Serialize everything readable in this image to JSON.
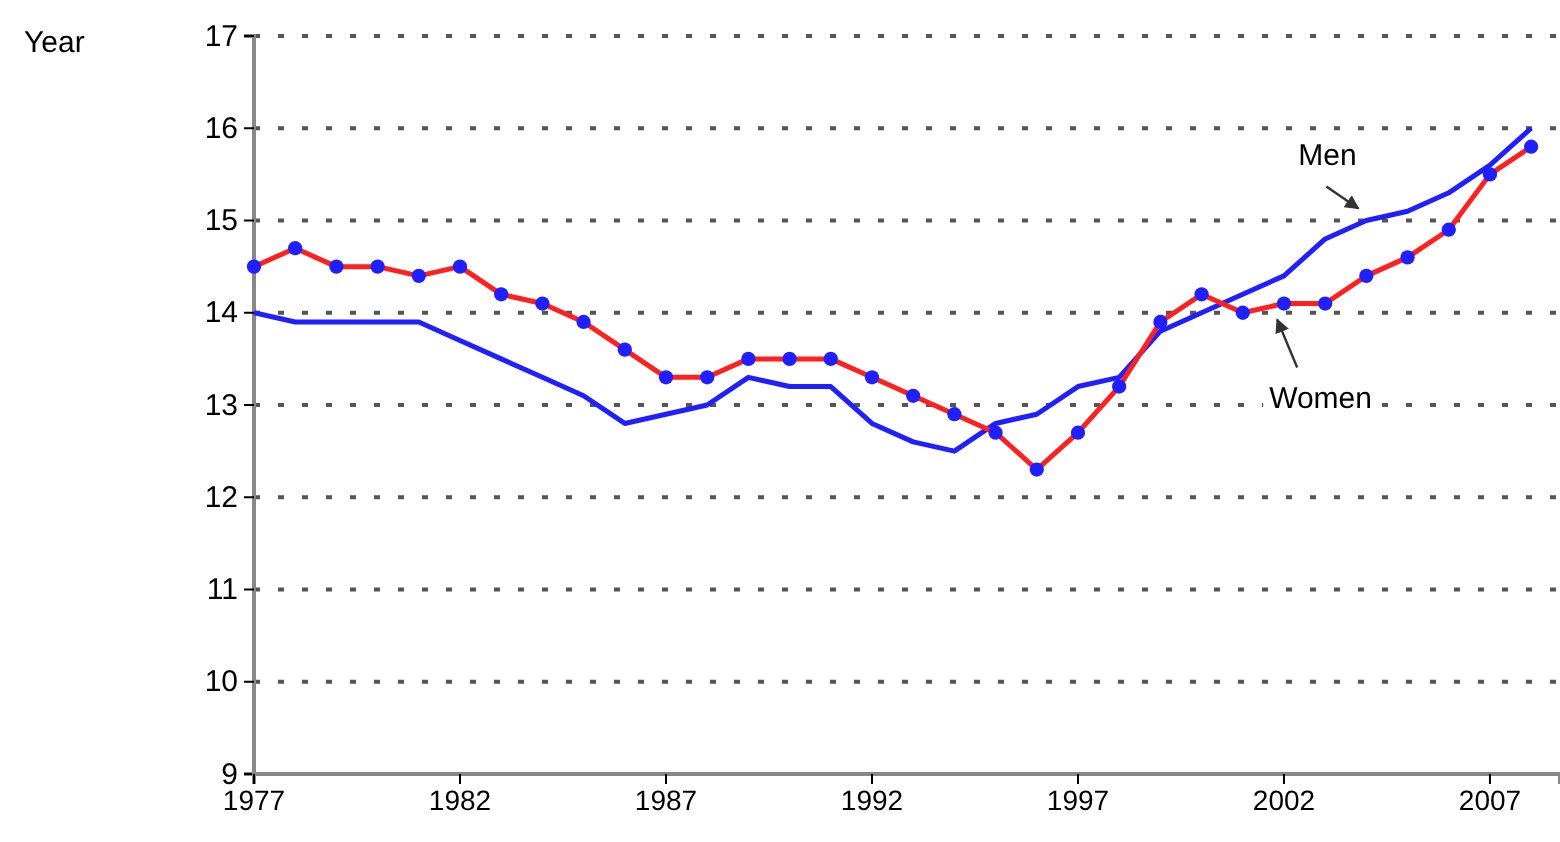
{
  "chart_data": {
    "type": "line",
    "ylabel": "Year",
    "x": [
      1977,
      1978,
      1979,
      1980,
      1981,
      1982,
      1983,
      1984,
      1985,
      1986,
      1987,
      1988,
      1989,
      1990,
      1991,
      1992,
      1993,
      1994,
      1995,
      1996,
      1997,
      1998,
      1999,
      2000,
      2001,
      2002,
      2003,
      2004,
      2005,
      2006,
      2007,
      2008
    ],
    "series": [
      {
        "name": "Men",
        "color": "#1f1fff",
        "marker": "none",
        "values": [
          14.0,
          13.9,
          13.9,
          13.9,
          13.9,
          13.7,
          13.5,
          13.3,
          13.1,
          12.8,
          12.9,
          13.0,
          13.3,
          13.2,
          13.2,
          12.8,
          12.6,
          12.5,
          12.8,
          12.9,
          13.2,
          13.3,
          13.8,
          14.0,
          14.2,
          14.4,
          14.8,
          15.0,
          15.1,
          15.3,
          15.6,
          16.0
        ]
      },
      {
        "name": "Women",
        "color": "#ff2020",
        "marker": "circle",
        "values": [
          14.5,
          14.7,
          14.5,
          14.5,
          14.4,
          14.5,
          14.2,
          14.1,
          13.9,
          13.6,
          13.3,
          13.3,
          13.5,
          13.5,
          13.5,
          13.3,
          13.1,
          12.9,
          12.7,
          12.3,
          12.7,
          13.2,
          13.9,
          14.2,
          14.0,
          14.1,
          14.1,
          14.4,
          14.6,
          14.9,
          15.5,
          15.8
        ]
      }
    ],
    "xlim": [
      1977,
      2008.7
    ],
    "xticks": [
      1977,
      1982,
      1987,
      1992,
      1997,
      2002,
      2007
    ],
    "ylim": [
      9,
      17
    ],
    "yticks": [
      9,
      10,
      11,
      12,
      13,
      14,
      15,
      16,
      17
    ],
    "grid": "y",
    "legend": false,
    "line_style": "solid"
  }
}
